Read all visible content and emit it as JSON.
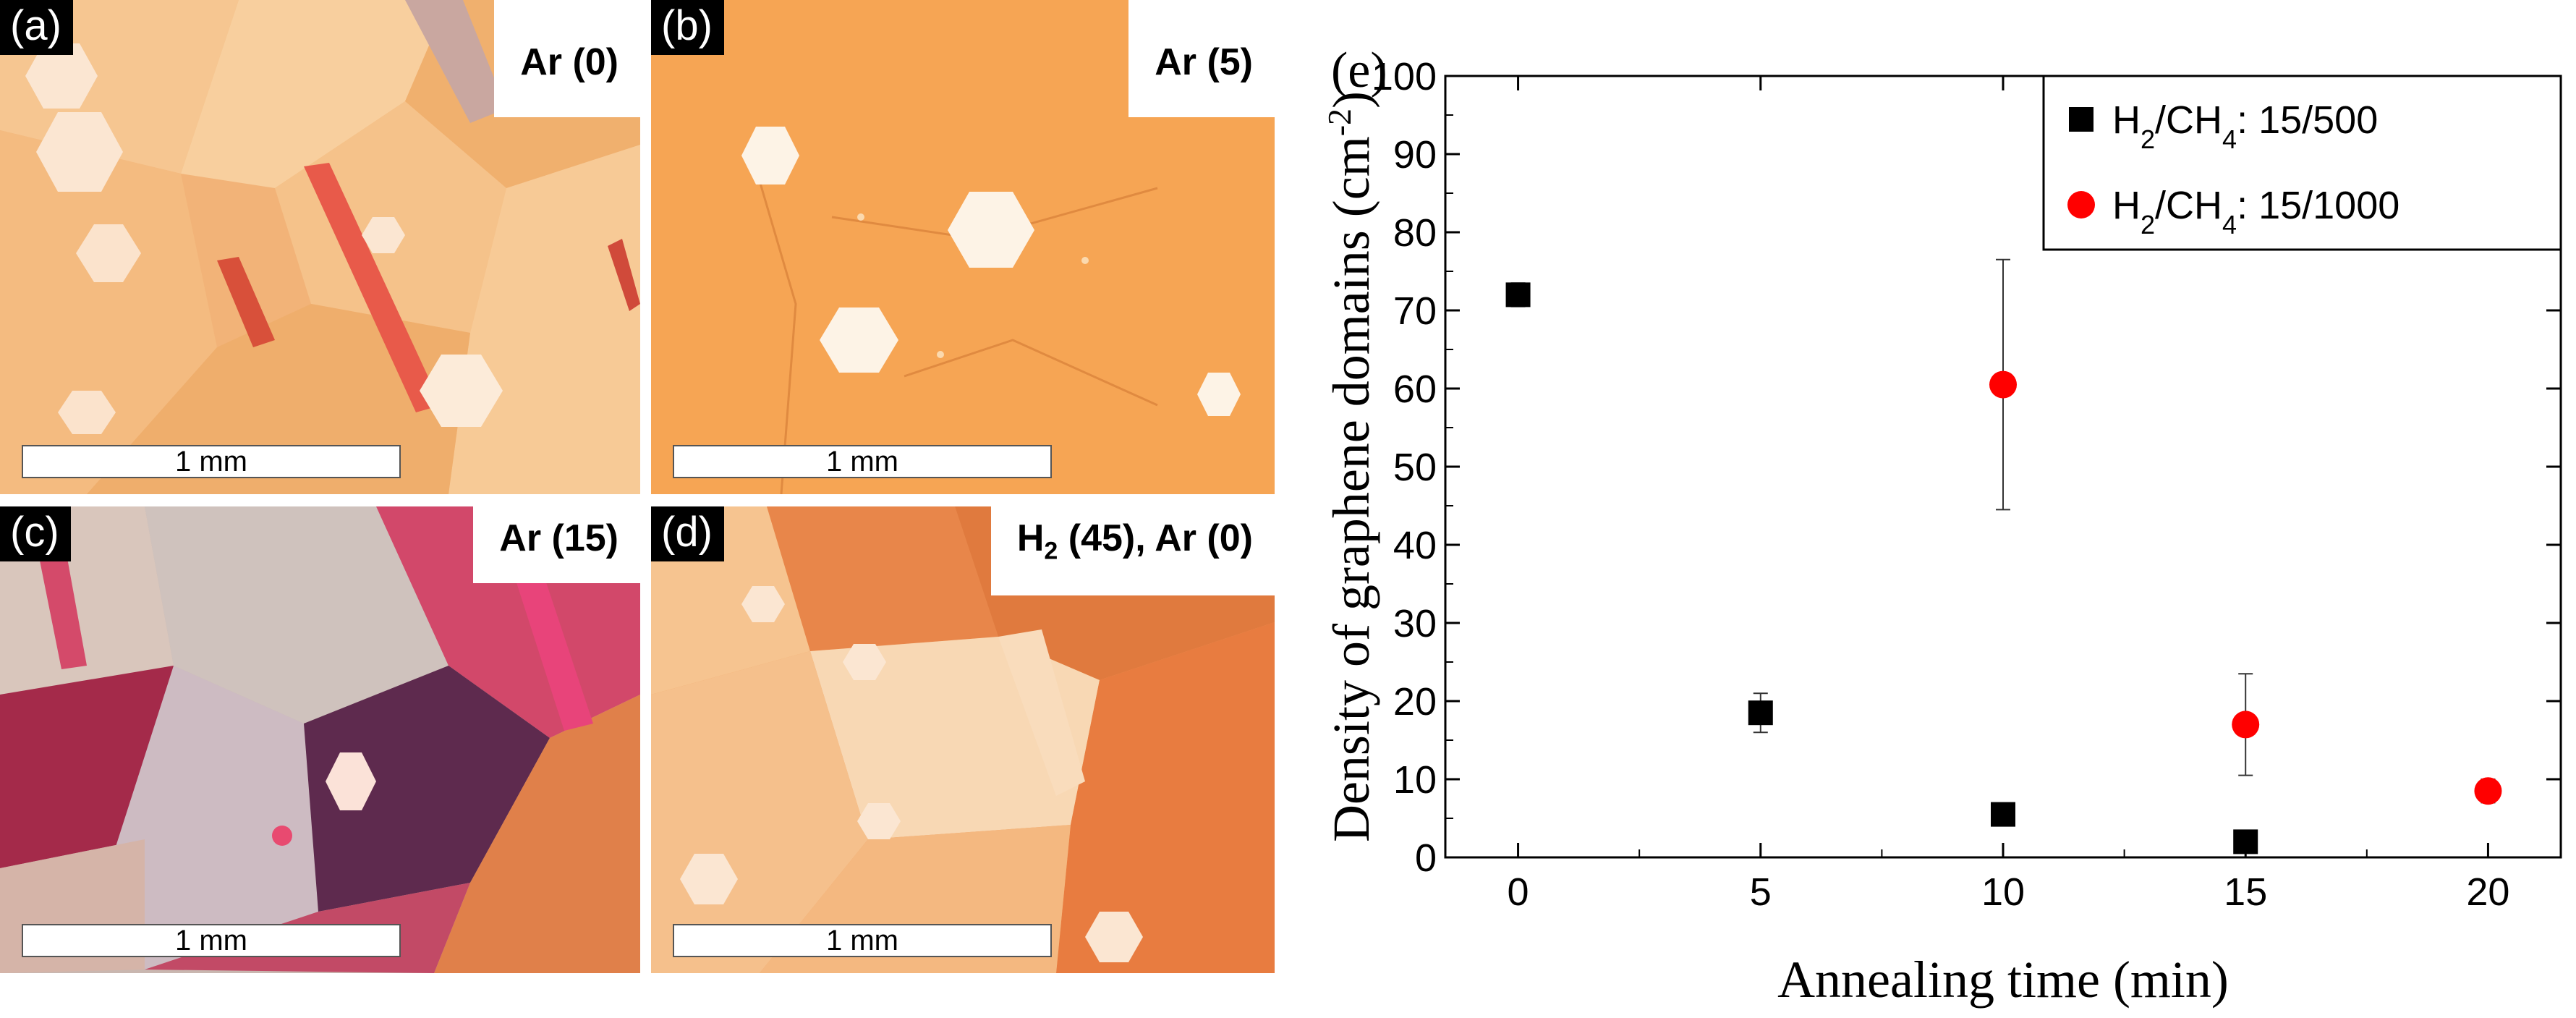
{
  "panels": [
    {
      "label": "(a)",
      "condition": "Ar (0)",
      "scale": "1 mm"
    },
    {
      "label": "(b)",
      "condition": "Ar (5)",
      "scale": "1 mm"
    },
    {
      "label": "(c)",
      "condition": "Ar (15)",
      "scale": "1 mm"
    },
    {
      "label": "(d)",
      "condition_parts": [
        "H",
        "2",
        " (45), Ar (0)"
      ],
      "scale": "1 mm"
    }
  ],
  "chart_label": "(e)",
  "chart_data": {
    "type": "scatter",
    "xlabel": "Annealing time (min)",
    "ylabel_parts": [
      "Density of graphene domains (cm",
      "-2",
      ")"
    ],
    "xlim": [
      -1.5,
      21.5
    ],
    "ylim": [
      0,
      100
    ],
    "xticks": [
      0,
      5,
      10,
      15,
      20
    ],
    "yticks": [
      0,
      10,
      20,
      30,
      40,
      50,
      60,
      70,
      80,
      90,
      100
    ],
    "grid": false,
    "legend_position": "top-right",
    "series": [
      {
        "name_parts": [
          "H",
          "2",
          "/CH",
          "4",
          ": 15/500"
        ],
        "marker": "square",
        "color": "#000000",
        "points": [
          {
            "x": 0,
            "y": 72,
            "err": 1.5
          },
          {
            "x": 5,
            "y": 18.5,
            "err": 2.5
          },
          {
            "x": 10,
            "y": 5.5,
            "err": 0
          },
          {
            "x": 15,
            "y": 2,
            "err": 0
          }
        ]
      },
      {
        "name_parts": [
          "H",
          "2",
          "/CH",
          "4",
          ": 15/1000"
        ],
        "marker": "circle",
        "color": "#ff0000",
        "points": [
          {
            "x": 10,
            "y": 60.5,
            "err": 16
          },
          {
            "x": 15,
            "y": 17,
            "err": 6.5
          },
          {
            "x": 20,
            "y": 8.5,
            "err": 1.5
          }
        ]
      }
    ]
  }
}
